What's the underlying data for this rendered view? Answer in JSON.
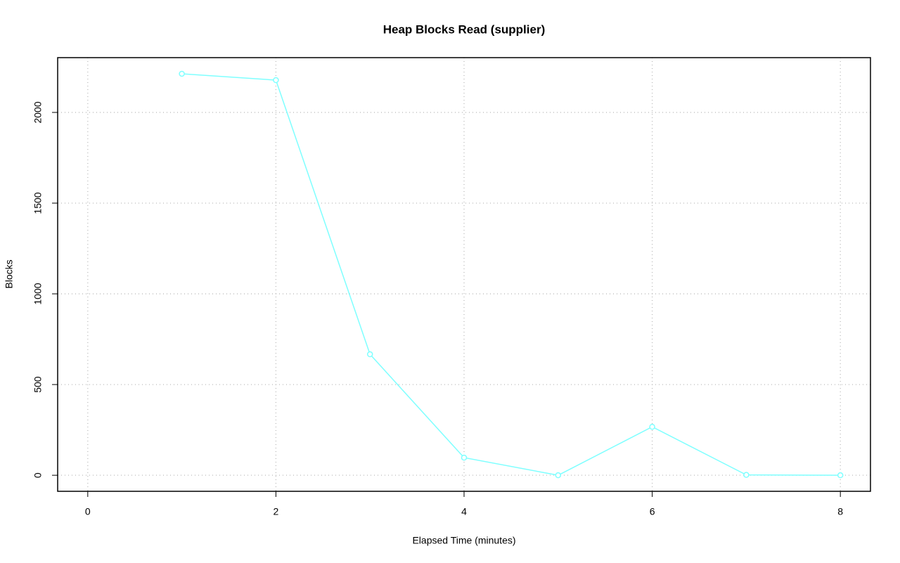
{
  "chart_data": {
    "type": "line",
    "title": "Heap Blocks Read (supplier)",
    "x_label": "Elapsed Time (minutes)",
    "y_label": "Blocks",
    "x": [
      1,
      2,
      3,
      4,
      5,
      6,
      7,
      8
    ],
    "series": [
      {
        "color": "#7fffff",
        "values": [
          2213,
          2178,
          667,
          97,
          0,
          267,
          2,
          0
        ]
      }
    ],
    "xlim": [
      -0.32,
      8.32
    ],
    "xticks": [
      0,
      2,
      4,
      6,
      8
    ],
    "ylim": [
      -88.5,
      2302
    ],
    "yticks": [
      0,
      500,
      1000,
      1500,
      2000
    ],
    "grid": true
  }
}
